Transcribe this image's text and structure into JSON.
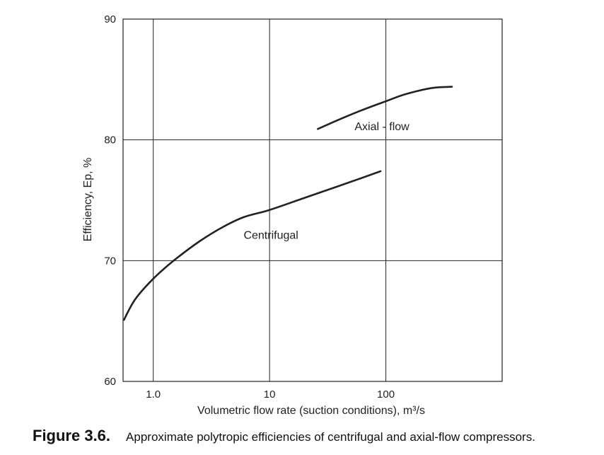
{
  "caption": {
    "number": "Figure 3.6.",
    "text": "Approximate polytropic efficiencies of centrifugal and axial-flow compressors."
  },
  "chart_data": {
    "type": "line",
    "xlabel": "Volumetric flow rate (suction conditions), m³/s",
    "ylabel": "Efficiency, Ep, %",
    "x_scale": "log",
    "xlim": [
      0.55,
      1000
    ],
    "ylim": [
      60,
      90
    ],
    "x_ticks": [
      1,
      10,
      100
    ],
    "x_tick_labels": [
      "1.0",
      "10",
      "100"
    ],
    "y_ticks": [
      60,
      70,
      80,
      90
    ],
    "y_tick_labels": [
      "60",
      "70",
      "80",
      "90"
    ],
    "grid": true,
    "line_color": "#222222",
    "grid_color": "#222222",
    "series": [
      {
        "name": "Centrifugal",
        "points": [
          [
            0.56,
            65.1
          ],
          [
            0.7,
            66.8
          ],
          [
            1.0,
            68.5
          ],
          [
            1.5,
            70.0
          ],
          [
            2.5,
            71.6
          ],
          [
            4.0,
            72.8
          ],
          [
            6.0,
            73.6
          ],
          [
            10,
            74.2
          ],
          [
            20,
            75.2
          ],
          [
            40,
            76.2
          ],
          [
            90,
            77.4
          ]
        ]
      },
      {
        "name": "Axial - flow",
        "points": [
          [
            26,
            80.9
          ],
          [
            40,
            81.7
          ],
          [
            60,
            82.4
          ],
          [
            100,
            83.2
          ],
          [
            150,
            83.8
          ],
          [
            250,
            84.3
          ],
          [
            370,
            84.4
          ]
        ]
      }
    ]
  }
}
